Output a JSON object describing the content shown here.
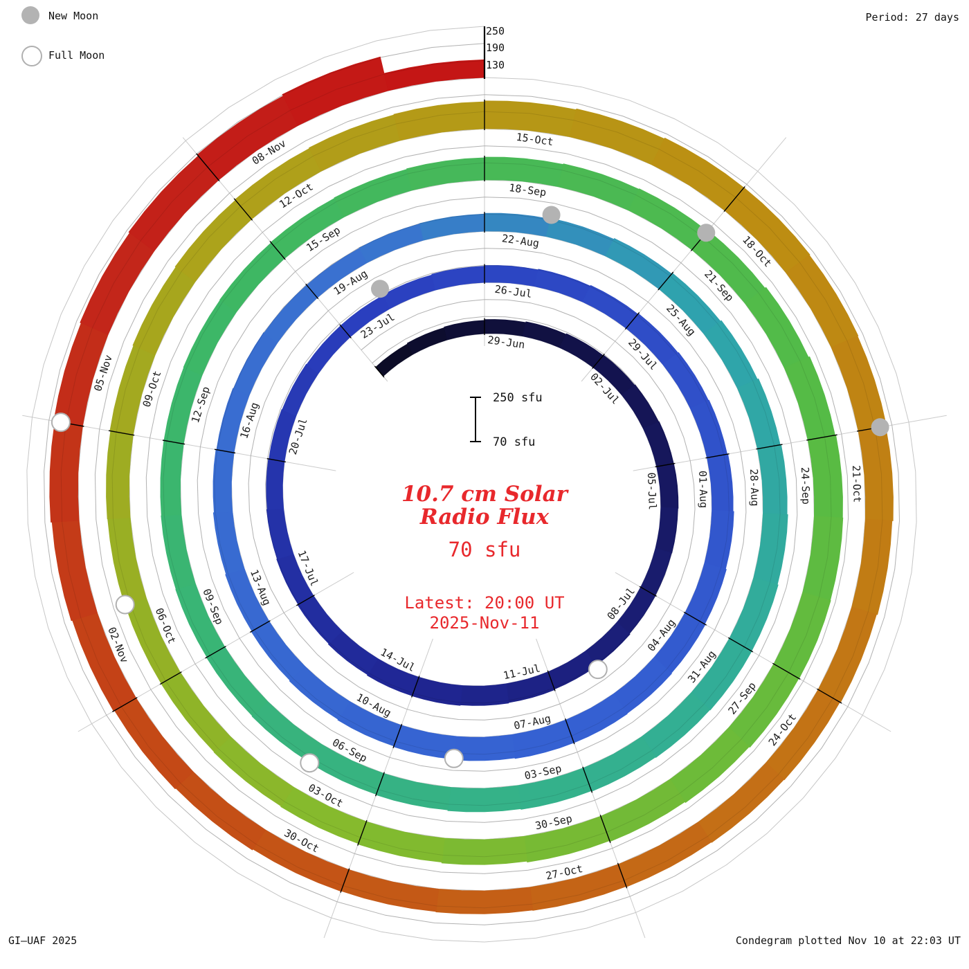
{
  "header": {
    "period_label": "Period: 27 days"
  },
  "legend": {
    "new_moon_label": "New Moon",
    "full_moon_label": "Full Moon"
  },
  "footer": {
    "credit_left": "GI–UAF 2025",
    "credit_right": "Condegram plotted Nov 10 at 22:03 UT"
  },
  "center": {
    "title_line1": "10.7 cm Solar",
    "title_line2": "Radio Flux",
    "current_value": "70 sfu",
    "latest_line1": "Latest: 20:00 UT",
    "latest_line2": "2025-Nov-11"
  },
  "scalebar": {
    "top_label": "250 sfu",
    "bottom_label": "70 sfu"
  },
  "axis": {
    "labels": [
      "250",
      "190",
      "130"
    ]
  },
  "chart_data": {
    "type": "area",
    "layout": "polar spiral (condegram), 27 days per revolution, clockwise from 12 o'clock; band thickness = flux above 70 sfu baseline; gridlines at 70/130/190/250 sfu; legend top-left; color varies with date from dark navy (Jun) through blue, teal, green, olive, orange to red (Nov)",
    "title": "10.7 cm Solar Radio Flux",
    "units": "sfu",
    "period_days": 27,
    "flux_min": 70,
    "flux_max": 250,
    "grid_levels": [
      70,
      130,
      190,
      250
    ],
    "tick_interval_days": 3,
    "top_of_dial_dates": [
      "29-Jun",
      "26-Jul",
      "22-Aug",
      "18-Sep",
      "15-Oct",
      "11-Nov"
    ],
    "date_ticks": [
      "29-Jun",
      "02-Jul",
      "05-Jul",
      "08-Jul",
      "11-Jul",
      "14-Jul",
      "17-Jul",
      "20-Jul",
      "23-Jul",
      "26-Jul",
      "29-Jul",
      "01-Aug",
      "04-Aug",
      "07-Aug",
      "10-Aug",
      "13-Aug",
      "16-Aug",
      "19-Aug",
      "22-Aug",
      "25-Aug",
      "28-Aug",
      "31-Aug",
      "03-Sep",
      "06-Sep",
      "09-Sep",
      "12-Sep",
      "15-Sep",
      "18-Sep",
      "21-Sep",
      "24-Sep",
      "27-Sep",
      "30-Sep",
      "03-Oct",
      "06-Oct",
      "09-Oct",
      "12-Oct",
      "15-Oct",
      "18-Oct",
      "21-Oct",
      "24-Oct",
      "27-Oct",
      "30-Oct",
      "02-Nov",
      "05-Nov",
      "08-Nov"
    ],
    "flux_points": [
      {
        "d": "26-Jun",
        "v": 110
      },
      {
        "d": "29-Jun",
        "v": 118
      },
      {
        "d": "02-Jul",
        "v": 126
      },
      {
        "d": "05-Jul",
        "v": 132
      },
      {
        "d": "08-Jul",
        "v": 128
      },
      {
        "d": "11-Jul",
        "v": 136
      },
      {
        "d": "14-Jul",
        "v": 141
      },
      {
        "d": "17-Jul",
        "v": 133
      },
      {
        "d": "20-Jul",
        "v": 126
      },
      {
        "d": "23-Jul",
        "v": 121
      },
      {
        "d": "26-Jul",
        "v": 128
      },
      {
        "d": "29-Jul",
        "v": 136
      },
      {
        "d": "01-Aug",
        "v": 143
      },
      {
        "d": "04-Aug",
        "v": 151
      },
      {
        "d": "07-Aug",
        "v": 156
      },
      {
        "d": "10-Aug",
        "v": 149
      },
      {
        "d": "13-Aug",
        "v": 141
      },
      {
        "d": "16-Aug",
        "v": 133
      },
      {
        "d": "19-Aug",
        "v": 127
      },
      {
        "d": "22-Aug",
        "v": 131
      },
      {
        "d": "25-Aug",
        "v": 141
      },
      {
        "d": "28-Aug",
        "v": 153
      },
      {
        "d": "31-Aug",
        "v": 161
      },
      {
        "d": "03-Sep",
        "v": 156
      },
      {
        "d": "06-Sep",
        "v": 149
      },
      {
        "d": "09-Sep",
        "v": 143
      },
      {
        "d": "12-Sep",
        "v": 139
      },
      {
        "d": "15-Sep",
        "v": 143
      },
      {
        "d": "18-Sep",
        "v": 149
      },
      {
        "d": "21-Sep",
        "v": 156
      },
      {
        "d": "24-Sep",
        "v": 169
      },
      {
        "d": "27-Sep",
        "v": 173
      },
      {
        "d": "30-Sep",
        "v": 163
      },
      {
        "d": "03-Oct",
        "v": 153
      },
      {
        "d": "06-Oct",
        "v": 147
      },
      {
        "d": "09-Oct",
        "v": 151
      },
      {
        "d": "12-Oct",
        "v": 159
      },
      {
        "d": "15-Oct",
        "v": 166
      },
      {
        "d": "18-Oct",
        "v": 176
      },
      {
        "d": "21-Oct",
        "v": 169
      },
      {
        "d": "24-Oct",
        "v": 159
      },
      {
        "d": "27-Oct",
        "v": 153
      },
      {
        "d": "30-Oct",
        "v": 149
      },
      {
        "d": "02-Nov",
        "v": 159
      },
      {
        "d": "05-Nov",
        "v": 171
      },
      {
        "d": "08-Nov",
        "v": 183
      },
      {
        "d": "10-Nov",
        "v": 195
      },
      {
        "d": "11-Nov",
        "v": 70
      }
    ],
    "moon_events": [
      {
        "date": "10-Jul",
        "type": "full"
      },
      {
        "date": "24-Jul",
        "type": "new"
      },
      {
        "date": "09-Aug",
        "type": "full"
      },
      {
        "date": "23-Aug",
        "type": "new"
      },
      {
        "date": "07-Sep",
        "type": "full"
      },
      {
        "date": "21-Sep",
        "type": "new"
      },
      {
        "date": "07-Oct",
        "type": "full"
      },
      {
        "date": "21-Oct",
        "type": "new"
      },
      {
        "date": "05-Nov",
        "type": "full"
      }
    ],
    "color_stops": [
      {
        "t": 0.0,
        "c": "#0b0b24"
      },
      {
        "t": 0.05,
        "c": "#141452"
      },
      {
        "t": 0.13,
        "c": "#1f2693"
      },
      {
        "t": 0.2,
        "c": "#2a3fbf"
      },
      {
        "t": 0.3,
        "c": "#3560d2"
      },
      {
        "t": 0.4,
        "c": "#3a72d0"
      },
      {
        "t": 0.44,
        "c": "#2fa4ad"
      },
      {
        "t": 0.5,
        "c": "#34b18d"
      },
      {
        "t": 0.58,
        "c": "#3db765"
      },
      {
        "t": 0.65,
        "c": "#55bb45"
      },
      {
        "t": 0.72,
        "c": "#85ba2d"
      },
      {
        "t": 0.78,
        "c": "#ada31b"
      },
      {
        "t": 0.83,
        "c": "#bd8d12"
      },
      {
        "t": 0.88,
        "c": "#c46f16"
      },
      {
        "t": 0.93,
        "c": "#c44a16"
      },
      {
        "t": 0.97,
        "c": "#c3231a"
      },
      {
        "t": 1.0,
        "c": "#c41414"
      }
    ],
    "latest": {
      "value_sfu": 70,
      "time": "20:00 UT",
      "date": "2025-Nov-11"
    }
  }
}
